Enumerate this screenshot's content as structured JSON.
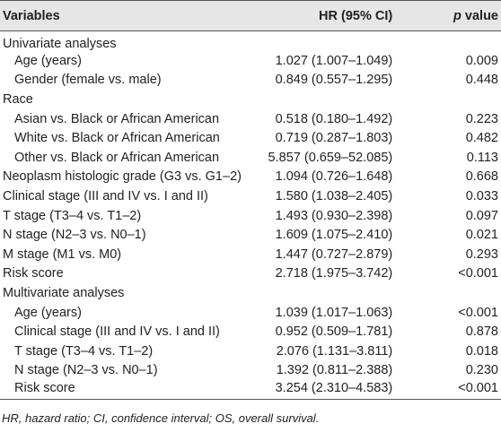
{
  "header": {
    "variables": "Variables",
    "hr": "HR (95% CI)",
    "p_italic": "p",
    "p_rest": "value"
  },
  "sections": [
    {
      "label": "Univariate analyses",
      "items": [
        {
          "label": "Age (years)",
          "hr": "1.027 (1.007–1.049)",
          "p": "0.009"
        },
        {
          "label": "Gender (female vs. male)",
          "hr": "0.849 (0.557–1.295)",
          "p": "0.448"
        }
      ]
    },
    {
      "label": "Race",
      "items": [
        {
          "label": "Asian vs. Black or African American",
          "hr": "0.518 (0.180–1.492)",
          "p": "0.223"
        },
        {
          "label": "White vs. Black or African American",
          "hr": "0.719 (0.287–1.803)",
          "p": "0.482"
        },
        {
          "label": "Other vs. Black or African American",
          "hr": "5.857 (0.659–52.085)",
          "p": "0.113"
        }
      ]
    },
    {
      "label": "Neoplasm histologic grade (G3 vs. G1–2)",
      "hr": "1.094 (0.726–1.648)",
      "p": "0.668"
    },
    {
      "label": "Clinical stage (III and IV vs. I and II)",
      "hr": "1.580 (1.038–2.405)",
      "p": "0.033"
    },
    {
      "label": "T stage (T3–4 vs. T1–2)",
      "hr": "1.493 (0.930–2.398)",
      "p": "0.097"
    },
    {
      "label": "N stage (N2–3 vs. N0–1)",
      "hr": "1.609 (1.075–2.410)",
      "p": "0.021"
    },
    {
      "label": "M stage (M1 vs. M0)",
      "hr": "1.447 (0.727–2.879)",
      "p": "0.293"
    },
    {
      "label": "Risk score",
      "hr": "2.718 (1.975–3.742)",
      "p": "<0.001"
    },
    {
      "label": "Multivariate analyses",
      "items": [
        {
          "label": "Age (years)",
          "hr": "1.039 (1.017–1.063)",
          "p": "<0.001"
        },
        {
          "label": "Clinical stage (III and IV vs. I and II)",
          "hr": "0.952 (0.509–1.781)",
          "p": "0.878"
        },
        {
          "label": "T stage (T3–4 vs. T1–2)",
          "hr": "2.076 (1.131–3.811)",
          "p": "0.018"
        },
        {
          "label": "N stage (N2–3 vs. N0–1)",
          "hr": "1.392 (0.811–2.388)",
          "p": "0.230"
        },
        {
          "label": "Risk score",
          "hr": "3.254 (2.310–4.583)",
          "p": "<0.001"
        }
      ]
    }
  ],
  "footnote": "HR, hazard ratio; CI, confidence interval; OS, overall survival."
}
